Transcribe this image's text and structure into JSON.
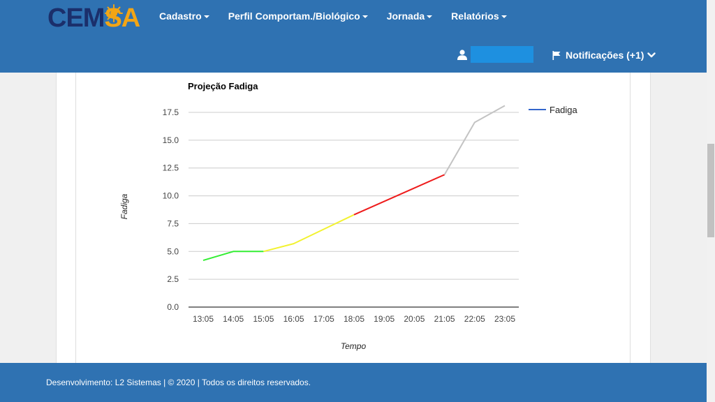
{
  "brand": {
    "logo_left": "CEM",
    "logo_right": "SA"
  },
  "nav": {
    "items": [
      {
        "label": "Cadastro"
      },
      {
        "label": "Perfil Comportam./Biológico"
      },
      {
        "label": "Jornada"
      },
      {
        "label": "Relatórios"
      }
    ]
  },
  "user": {
    "name": ""
  },
  "notifications": {
    "label": "Notificações (+1)"
  },
  "footer": {
    "text": "Desenvolvimento: L2 Sistemas | © 2020 | Todos os direitos reservados."
  },
  "colors": {
    "header": "#2f72b2",
    "green": "#33ee33",
    "yellow": "#f2f230",
    "red": "#ee1c1c",
    "gray": "#c3c3c3",
    "legend_line": "#3366cc"
  },
  "chart_data": {
    "type": "line",
    "title": "Projeção Fadiga",
    "xlabel": "Tempo",
    "ylabel": "Fadiga",
    "ylim": [
      0,
      17.5
    ],
    "yticks": [
      "0.0",
      "2.5",
      "5.0",
      "7.5",
      "10.0",
      "12.5",
      "15.0",
      "17.5"
    ],
    "categories": [
      "13:05",
      "14:05",
      "15:05",
      "16:05",
      "17:05",
      "18:05",
      "19:05",
      "20:05",
      "21:05",
      "22:05",
      "23:05"
    ],
    "series": [
      {
        "name": "Fadiga",
        "values": [
          4.2,
          5.0,
          5.0,
          5.7,
          7.0,
          8.3,
          9.5,
          10.7,
          11.9,
          16.6,
          18.1
        ]
      }
    ],
    "segments": [
      {
        "from": 0,
        "to": 2,
        "color": "green"
      },
      {
        "from": 2,
        "to": 5,
        "color": "yellow"
      },
      {
        "from": 5,
        "to": 8,
        "color": "red"
      },
      {
        "from": 8,
        "to": 10,
        "color": "gray"
      }
    ],
    "legend": "right",
    "grid": true
  }
}
